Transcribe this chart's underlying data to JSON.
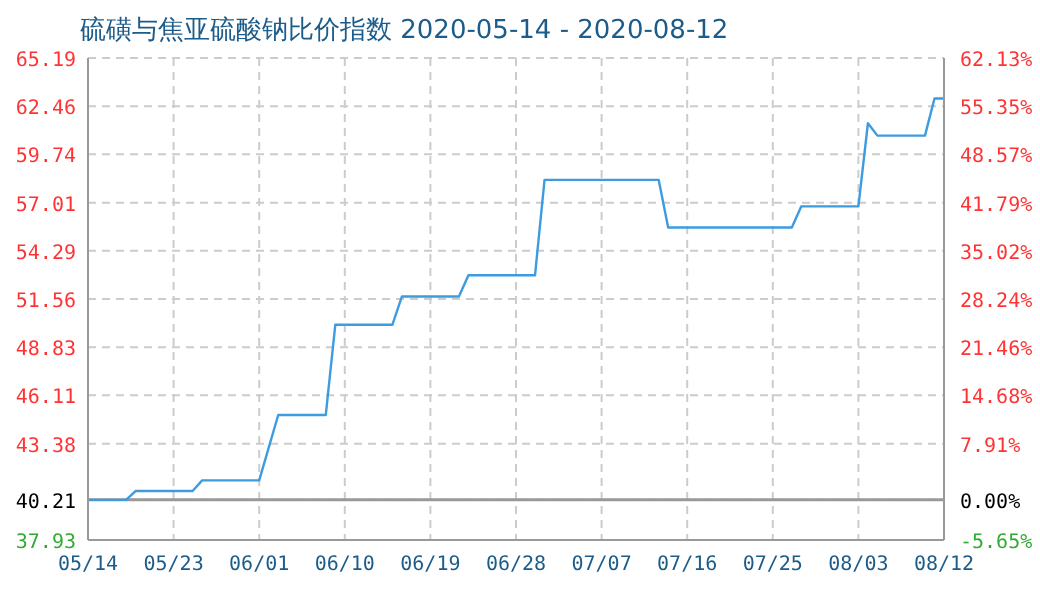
{
  "chart_data": {
    "type": "line",
    "title": "硫磺与焦亚硫酸钠比价指数 2020-05-14 - 2020-08-12",
    "x": [
      "2020-05-14",
      "2020-05-18",
      "2020-05-19",
      "2020-05-25",
      "2020-05-26",
      "2020-06-01",
      "2020-06-03",
      "2020-06-08",
      "2020-06-09",
      "2020-06-15",
      "2020-06-16",
      "2020-06-22",
      "2020-06-23",
      "2020-06-30",
      "2020-07-01",
      "2020-07-13",
      "2020-07-14",
      "2020-07-27",
      "2020-07-28",
      "2020-08-03",
      "2020-08-04",
      "2020-08-05",
      "2020-08-10",
      "2020-08-11",
      "2020-08-12"
    ],
    "series": [
      {
        "color": "#3d9be0",
        "values": [
          40.2,
          40.2,
          40.7,
          40.7,
          41.3,
          41.3,
          45.0,
          45.0,
          50.1,
          50.1,
          51.7,
          51.7,
          52.9,
          52.9,
          58.3,
          58.3,
          55.6,
          55.6,
          56.8,
          56.8,
          61.5,
          60.8,
          60.8,
          62.9,
          62.9
        ]
      }
    ],
    "xlim": [
      "2020-05-14",
      "2020-08-12"
    ],
    "xticks": [
      {
        "value": "2020-05-14",
        "label": "05/14"
      },
      {
        "value": "2020-05-23",
        "label": "05/23"
      },
      {
        "value": "2020-06-01",
        "label": "06/01"
      },
      {
        "value": "2020-06-10",
        "label": "06/10"
      },
      {
        "value": "2020-06-19",
        "label": "06/19"
      },
      {
        "value": "2020-06-28",
        "label": "06/28"
      },
      {
        "value": "2020-07-07",
        "label": "07/07"
      },
      {
        "value": "2020-07-16",
        "label": "07/16"
      },
      {
        "value": "2020-07-25",
        "label": "07/25"
      },
      {
        "value": "2020-08-03",
        "label": "08/03"
      },
      {
        "value": "2020-08-12",
        "label": "08/12"
      }
    ],
    "ylim": [
      37.93,
      65.19
    ],
    "yticks": [
      37.93,
      40.21,
      43.38,
      46.11,
      48.83,
      51.56,
      54.29,
      57.01,
      59.74,
      62.46,
      65.19
    ],
    "y2lim": [
      -5.65,
      62.13
    ],
    "y2ticks": [
      {
        "value": -5.65,
        "label": "-5.65%"
      },
      {
        "value": 0,
        "label": "0.00%"
      },
      {
        "value": 7.91,
        "label": "7.91%"
      },
      {
        "value": 14.68,
        "label": "14.68%"
      },
      {
        "value": 21.46,
        "label": "21.46%"
      },
      {
        "value": 28.24,
        "label": "28.24%"
      },
      {
        "value": 35.02,
        "label": "35.02%"
      },
      {
        "value": 41.79,
        "label": "41.79%"
      },
      {
        "value": 48.57,
        "label": "48.57%"
      },
      {
        "value": 55.35,
        "label": "55.35%"
      },
      {
        "value": 62.13,
        "label": "62.13%"
      }
    ],
    "ref_lines": [
      {
        "axis": "y",
        "value": 40.21,
        "color": "#999999",
        "line_style": "solid"
      }
    ],
    "grid": true,
    "marker": "none",
    "line_style": "solid"
  }
}
